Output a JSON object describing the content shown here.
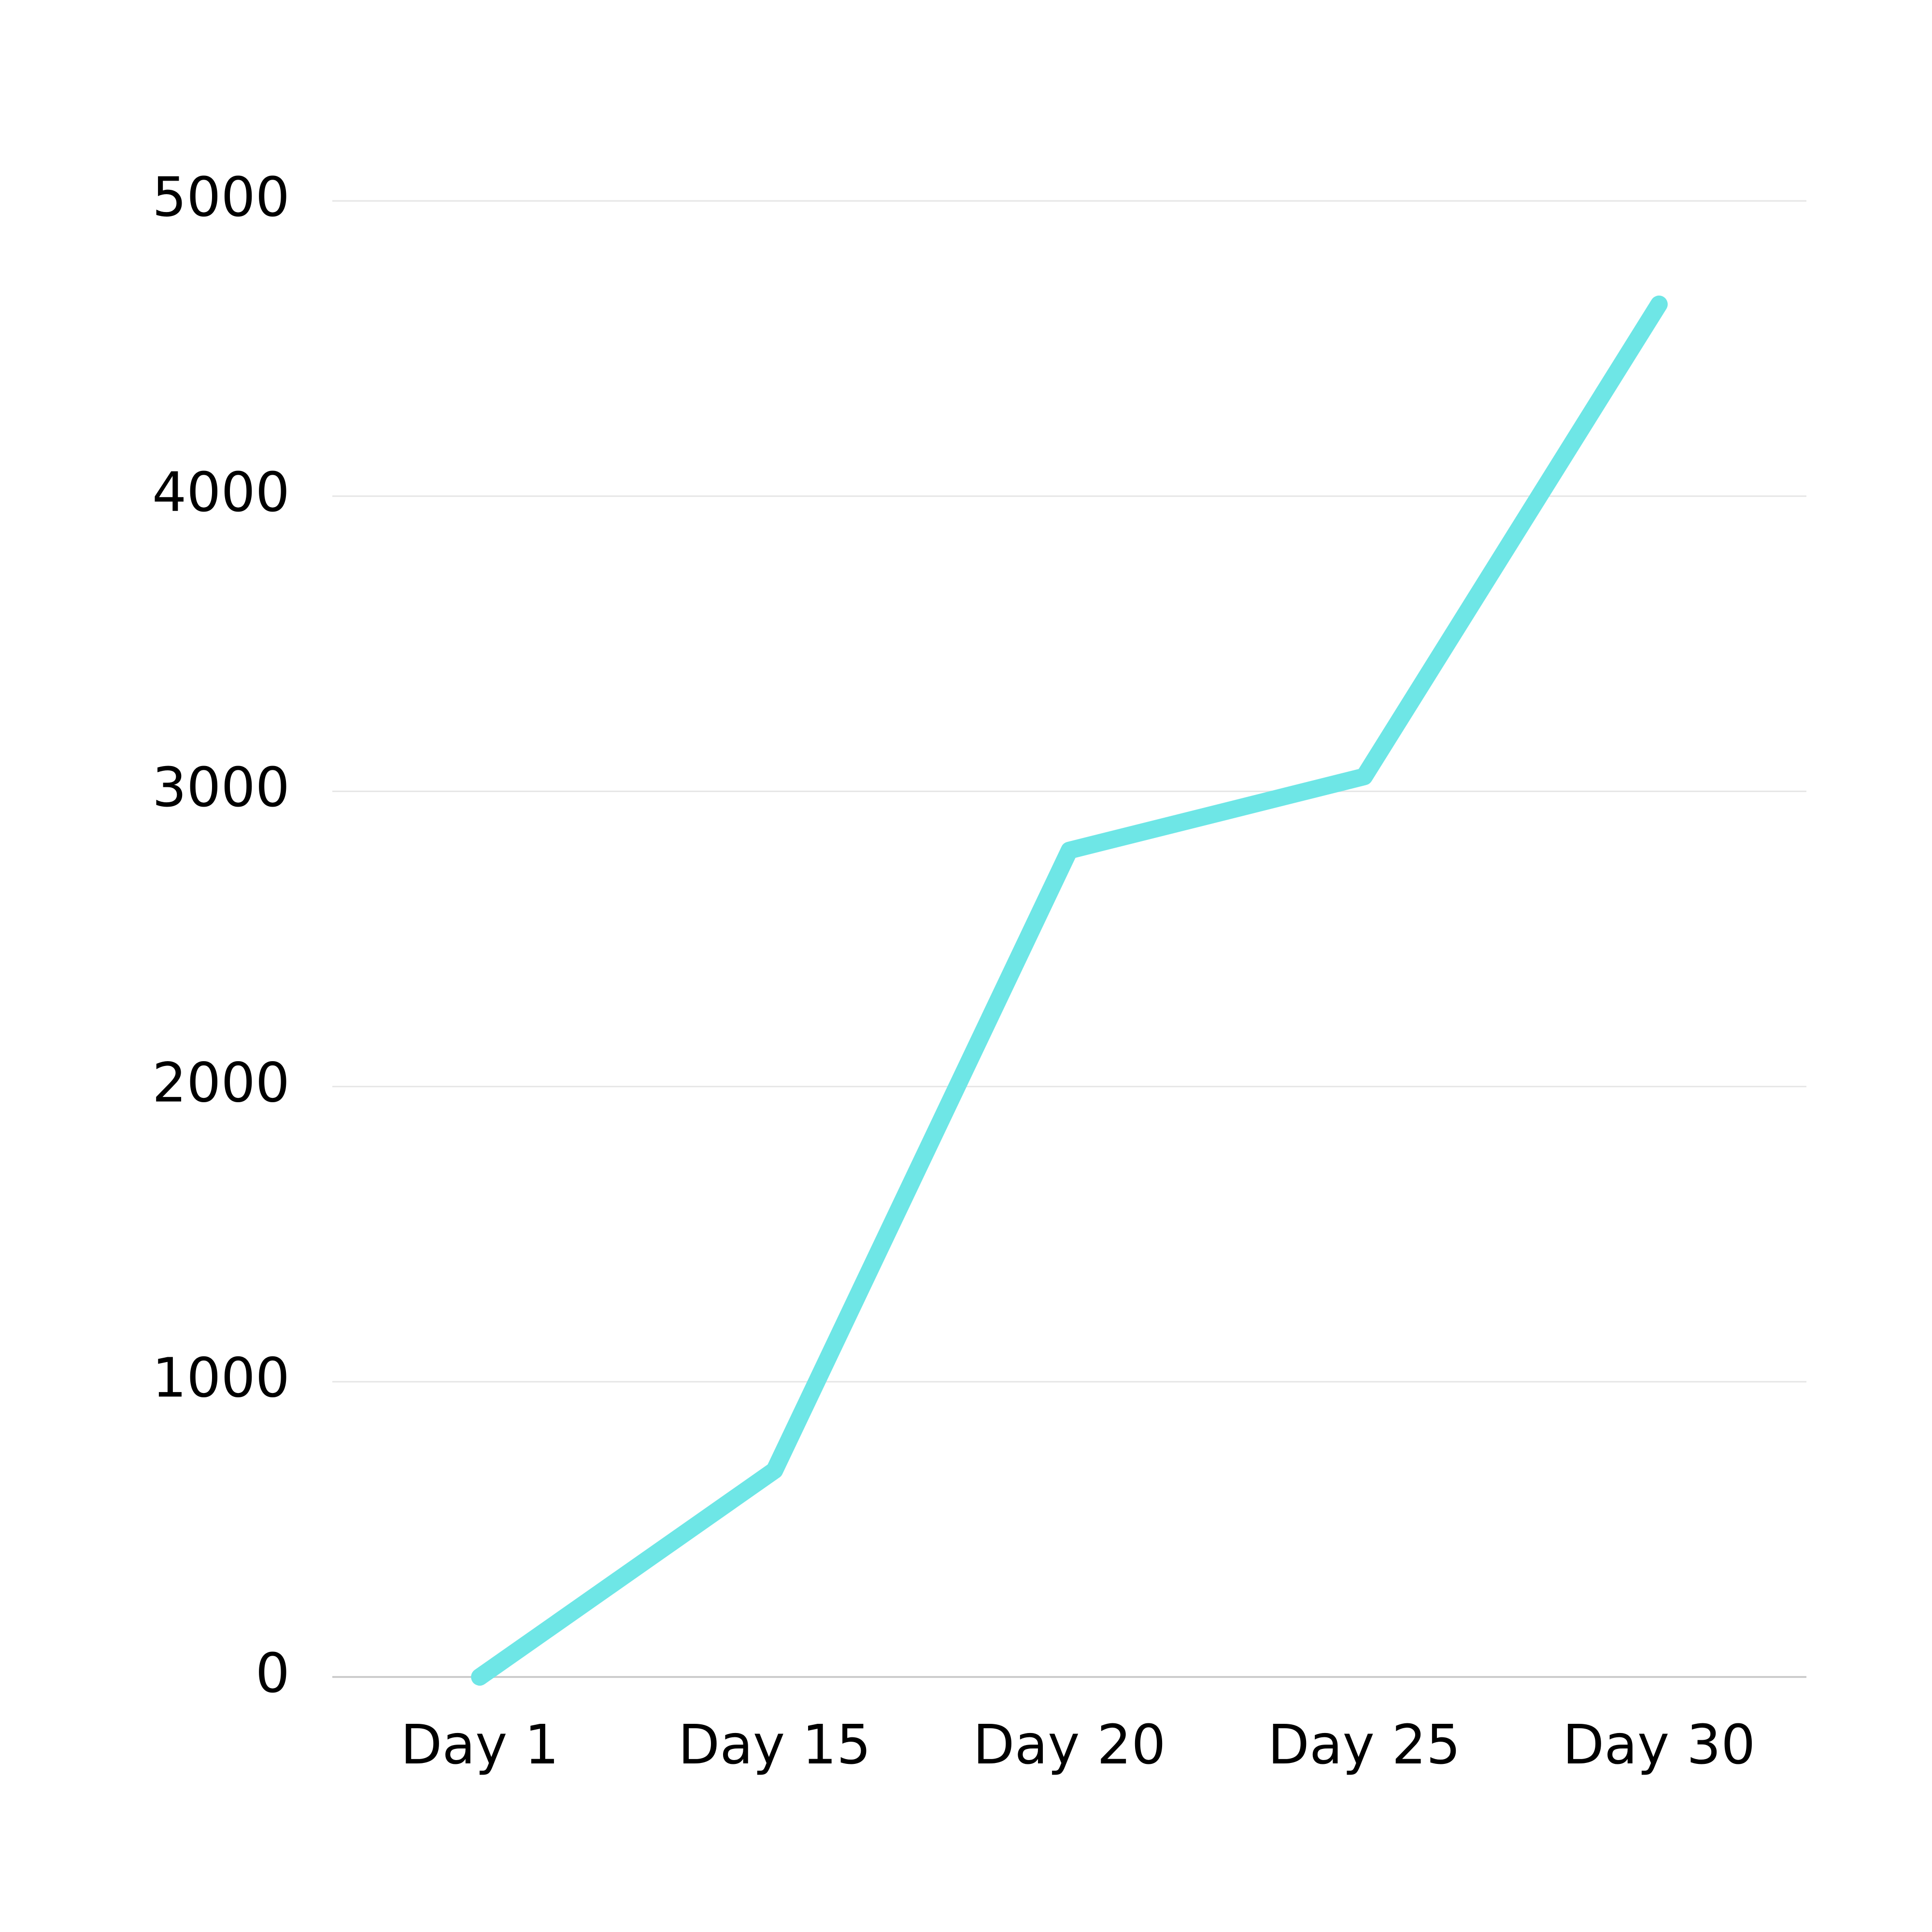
{
  "chart_data": {
    "type": "line",
    "title": "",
    "xlabel": "",
    "ylabel": "",
    "categories": [
      "Day 1",
      "Day 15",
      "Day 20",
      "Day 25",
      "Day 30"
    ],
    "series": [
      {
        "values": [
          0,
          700,
          2800,
          3050,
          4650
        ]
      }
    ],
    "ylim": [
      0,
      5000
    ],
    "yticks": [
      "0",
      "1000",
      "2000",
      "3000",
      "4000",
      "5000"
    ],
    "grid": true,
    "legend": "none",
    "colors": {
      "line": "#6ee6e6"
    }
  }
}
